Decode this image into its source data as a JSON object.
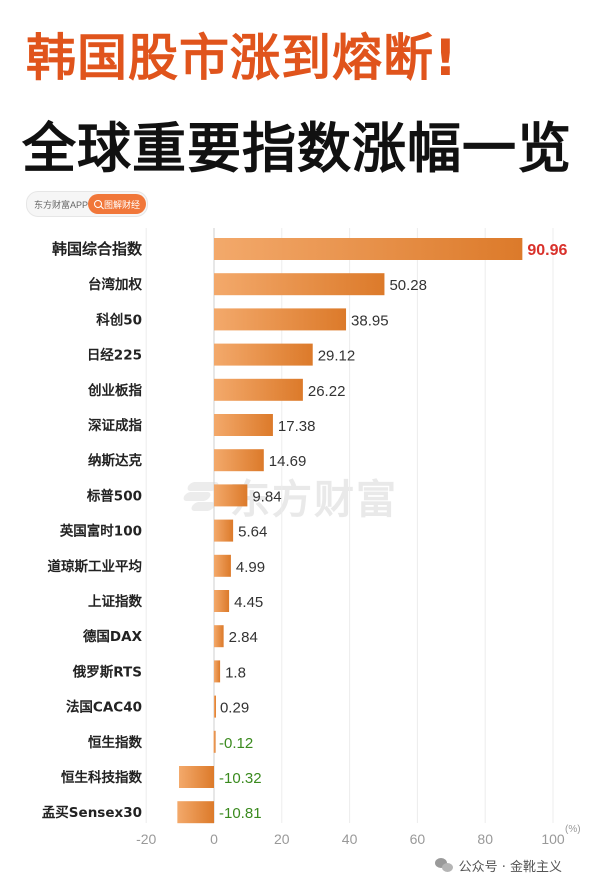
{
  "header": {
    "headline": "韩国股市涨到熔断!",
    "subheadline": "全球重要指数涨幅一览"
  },
  "source": {
    "app_label": "东方财富APP",
    "tag_label": "图解财经",
    "tag_icon": "search-icon"
  },
  "watermark": {
    "text": "东方财富"
  },
  "footer": {
    "text": "公众号 · 金靴主义",
    "icon": "wechat-icon"
  },
  "colors": {
    "bar_start": "#f3a96b",
    "bar_end": "#dc7a2a",
    "highlight_value": "#d9312b",
    "negative_value": "#3a8a1e",
    "headline": "#e0541c"
  },
  "chart_data": {
    "type": "bar",
    "orientation": "horizontal",
    "categories": [
      "韩国综合指数",
      "台湾加权",
      "科创50",
      "日经225",
      "创业板指",
      "深证成指",
      "纳斯达克",
      "标普500",
      "英国富时100",
      "道琼斯工业平均",
      "上证指数",
      "德国DAX",
      "俄罗斯RTS",
      "法国CAC40",
      "恒生指数",
      "恒生科技指数",
      "孟买Sensex30"
    ],
    "values": [
      90.96,
      50.28,
      38.95,
      29.12,
      26.22,
      17.38,
      14.69,
      9.84,
      5.64,
      4.99,
      4.45,
      2.84,
      1.8,
      0.29,
      -0.12,
      -10.32,
      -10.81
    ],
    "value_labels": [
      "90.96",
      "50.28",
      "38.95",
      "29.12",
      "26.22",
      "17.38",
      "14.69",
      "9.84",
      "5.64",
      "4.99",
      "4.45",
      "2.84",
      "1.8",
      "0.29",
      "-0.12",
      "-10.32",
      "-10.81"
    ],
    "xlim": [
      -20,
      100
    ],
    "xticks": [
      "-20",
      "0",
      "20",
      "40",
      "60",
      "80",
      "100"
    ],
    "unit": "(%)",
    "highlighted_category": "韩国综合指数",
    "grid": true
  }
}
